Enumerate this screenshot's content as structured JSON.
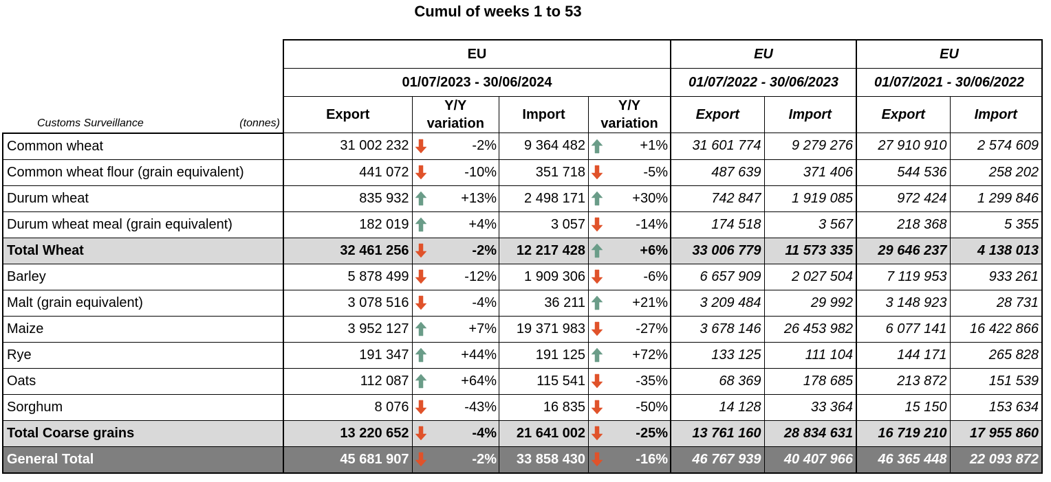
{
  "title": "Cumul of weeks 1 to 53",
  "header": {
    "region": "EU",
    "periods": [
      "01/07/2023 - 30/06/2024",
      "01/07/2022 - 30/06/2023",
      "01/07/2021 - 30/06/2022"
    ],
    "source_label": "Customs Surveillance",
    "unit_label": "(tonnes)",
    "col_export": "Export",
    "col_import": "Import",
    "col_yy": "Y/Y",
    "col_variation": "variation"
  },
  "colors": {
    "up": "#6a9c88",
    "down": "#e0522a",
    "subtotal_bg": "#d9d9d9",
    "total_bg": "#7f7f7f"
  },
  "rows": [
    {
      "label": "Common wheat",
      "exp": "31 002 232",
      "exp_dir": "down",
      "exp_var": "-2%",
      "imp": "9 364 482",
      "imp_dir": "up",
      "imp_var": "+1%",
      "exp22": "31 601 774",
      "imp22": "9 279 276",
      "exp21": "27 910 910",
      "imp21": "2 574 609",
      "type": "normal"
    },
    {
      "label": "Common wheat flour (grain equivalent)",
      "exp": "441 072",
      "exp_dir": "down",
      "exp_var": "-10%",
      "imp": "351 718",
      "imp_dir": "down",
      "imp_var": "-5%",
      "exp22": "487 639",
      "imp22": "371 406",
      "exp21": "544 536",
      "imp21": "258 202",
      "type": "normal"
    },
    {
      "label": "Durum wheat",
      "exp": "835 932",
      "exp_dir": "up",
      "exp_var": "+13%",
      "imp": "2 498 171",
      "imp_dir": "up",
      "imp_var": "+30%",
      "exp22": "742 847",
      "imp22": "1 919 085",
      "exp21": "972 424",
      "imp21": "1 299 846",
      "type": "normal"
    },
    {
      "label": "Durum wheat meal (grain equivalent)",
      "exp": "182 019",
      "exp_dir": "up",
      "exp_var": "+4%",
      "imp": "3 057",
      "imp_dir": "down",
      "imp_var": "-14%",
      "exp22": "174 518",
      "imp22": "3 567",
      "exp21": "218 368",
      "imp21": "5 355",
      "type": "normal"
    },
    {
      "label": "Total Wheat",
      "exp": "32 461 256",
      "exp_dir": "down",
      "exp_var": "-2%",
      "imp": "12 217 428",
      "imp_dir": "up",
      "imp_var": "+6%",
      "exp22": "33 006 779",
      "imp22": "11 573 335",
      "exp21": "29 646 237",
      "imp21": "4 138 013",
      "type": "sub"
    },
    {
      "label": "Barley",
      "exp": "5 878 499",
      "exp_dir": "down",
      "exp_var": "-12%",
      "imp": "1 909 306",
      "imp_dir": "down",
      "imp_var": "-6%",
      "exp22": "6 657 909",
      "imp22": "2 027 504",
      "exp21": "7 119 953",
      "imp21": "933 261",
      "type": "normal"
    },
    {
      "label": "Malt (grain equivalent)",
      "exp": "3 078 516",
      "exp_dir": "down",
      "exp_var": "-4%",
      "imp": "36 211",
      "imp_dir": "up",
      "imp_var": "+21%",
      "exp22": "3 209 484",
      "imp22": "29 992",
      "exp21": "3 148 923",
      "imp21": "28 731",
      "type": "normal"
    },
    {
      "label": "Maize",
      "exp": "3 952 127",
      "exp_dir": "up",
      "exp_var": "+7%",
      "imp": "19 371 983",
      "imp_dir": "down",
      "imp_var": "-27%",
      "exp22": "3 678 146",
      "imp22": "26 453 982",
      "exp21": "6 077 141",
      "imp21": "16 422 866",
      "type": "normal"
    },
    {
      "label": "Rye",
      "exp": "191 347",
      "exp_dir": "up",
      "exp_var": "+44%",
      "imp": "191 125",
      "imp_dir": "up",
      "imp_var": "+72%",
      "exp22": "133 125",
      "imp22": "111 104",
      "exp21": "144 171",
      "imp21": "265 828",
      "type": "normal"
    },
    {
      "label": "Oats",
      "exp": "112 087",
      "exp_dir": "up",
      "exp_var": "+64%",
      "imp": "115 541",
      "imp_dir": "down",
      "imp_var": "-35%",
      "exp22": "68 369",
      "imp22": "178 685",
      "exp21": "213 872",
      "imp21": "151 539",
      "type": "normal"
    },
    {
      "label": "Sorghum",
      "exp": "8 076",
      "exp_dir": "down",
      "exp_var": "-43%",
      "imp": "16 835",
      "imp_dir": "down",
      "imp_var": "-50%",
      "exp22": "14 128",
      "imp22": "33 364",
      "exp21": "15 150",
      "imp21": "153 634",
      "type": "normal"
    },
    {
      "label": "Total Coarse grains",
      "exp": "13 220 652",
      "exp_dir": "down",
      "exp_var": "-4%",
      "imp": "21 641 002",
      "imp_dir": "down",
      "imp_var": "-25%",
      "exp22": "13 761 160",
      "imp22": "28 834 631",
      "exp21": "16 719 210",
      "imp21": "17 955 860",
      "type": "sub"
    },
    {
      "label": "General Total",
      "exp": "45 681 907",
      "exp_dir": "down",
      "exp_var": "-2%",
      "imp": "33 858 430",
      "imp_dir": "down",
      "imp_var": "-16%",
      "exp22": "46 767 939",
      "imp22": "40 407 966",
      "exp21": "46 365 448",
      "imp21": "22 093 872",
      "type": "gt"
    }
  ]
}
